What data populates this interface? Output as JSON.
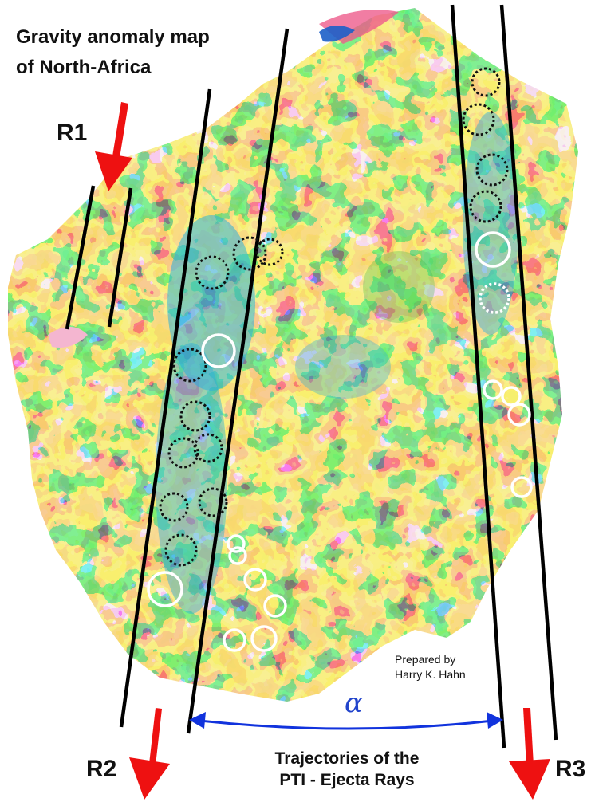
{
  "title": {
    "line1": "Gravity anomaly map",
    "line2": "of North-Africa"
  },
  "ray_labels": {
    "r1": "R1",
    "r2": "R2",
    "r3": "R3"
  },
  "credit": {
    "line1": "Prepared by",
    "line2": "Harry K. Hahn"
  },
  "angle_symbol": "α",
  "caption": {
    "line1": "Trajectories of the",
    "line2": "PTI - Ejecta Rays"
  },
  "colors": {
    "ray_lines": "#000000",
    "direction_arrows": "#ee1111",
    "angle_arrow": "#1133dd",
    "anomaly_pink": "#ee5c8c",
    "anomaly_red": "#e8333a",
    "anomaly_orange": "#f39a2a",
    "anomaly_yellow": "#f0e03a",
    "anomaly_green": "#38b64a",
    "anomaly_cyan": "#2bb0dd",
    "anomaly_blue": "#1c5fc8",
    "marker_dark": "#111111",
    "marker_white": "#ffffff"
  }
}
